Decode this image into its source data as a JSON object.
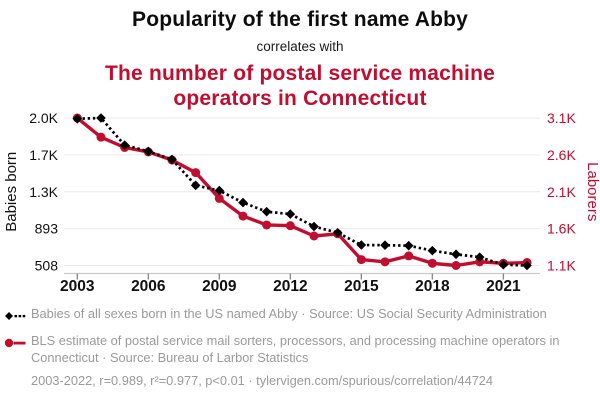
{
  "colors": {
    "accent_red": "#c10d30",
    "series_black": "#000000",
    "legend_gray": "#9a9a9a",
    "gridline": "#e9e9e9",
    "axis_line": "#c9c9c9",
    "tick_mark": "#8a8a8a",
    "axis_text": "#111111"
  },
  "chart_data": {
    "type": "line",
    "title": "Popularity of the first name Abby",
    "connector": "correlates with",
    "subtitle": "The number of postal service machine operators in Connecticut",
    "grid": true,
    "legend_position": "below",
    "x": [
      2003,
      2004,
      2005,
      2006,
      2007,
      2008,
      2009,
      2010,
      2011,
      2012,
      2013,
      2014,
      2015,
      2016,
      2017,
      2018,
      2019,
      2020,
      2021,
      2022
    ],
    "series": [
      {
        "name": "Babies of all sexes born in the US named Abby",
        "axis": "left",
        "color": "#000000",
        "line": "dotted",
        "marker": "diamond",
        "values": [
          2040,
          2048,
          1765,
          1700,
          1615,
          1345,
          1290,
          1165,
          1070,
          1045,
          915,
          850,
          722,
          720,
          715,
          663,
          625,
          595,
          516,
          508
        ]
      },
      {
        "name": "BLS estimate of postal service mail sorters, processors, and processing machine operators in Connecticut",
        "axis": "right",
        "color": "#c10d30",
        "line": "solid",
        "marker": "circle",
        "values": [
          3100,
          2840,
          2700,
          2640,
          2530,
          2360,
          2010,
          1770,
          1650,
          1640,
          1500,
          1530,
          1180,
          1150,
          1230,
          1130,
          1100,
          1150,
          1130,
          1140
        ]
      }
    ],
    "left_axis": {
      "label": "Babies born",
      "tick_labels": [
        "2.0K",
        "1.7K",
        "1.3K",
        "893",
        "508"
      ],
      "tick_values": [
        2048,
        1663,
        1278,
        893,
        508
      ],
      "range": [
        508,
        2048
      ]
    },
    "right_axis": {
      "label": "Laborers",
      "tick_labels": [
        "3.1K",
        "2.6K",
        "2.1K",
        "1.6K",
        "1.1K"
      ],
      "tick_values": [
        3100,
        2600,
        2100,
        1600,
        1100
      ],
      "range": [
        1100,
        3100
      ]
    },
    "x_axis": {
      "tick_labels": [
        "2003",
        "2006",
        "2009",
        "2012",
        "2015",
        "2018",
        "2021"
      ]
    }
  },
  "legend": {
    "items": [
      {
        "marker": "black-diamond-dotted",
        "label": "Babies of all sexes born in the US named Abby · Source: US Social Security Administration"
      },
      {
        "marker": "red-circle-solid",
        "label": "BLS estimate of postal service mail sorters, processors, and processing machine operators in Connecticut · Source: Bureau of Larbor Statistics"
      }
    ],
    "footnote": "2003-2022, r=0.989, r²=0.977, p<0.01 · tylervigen.com/spurious/correlation/44724"
  }
}
